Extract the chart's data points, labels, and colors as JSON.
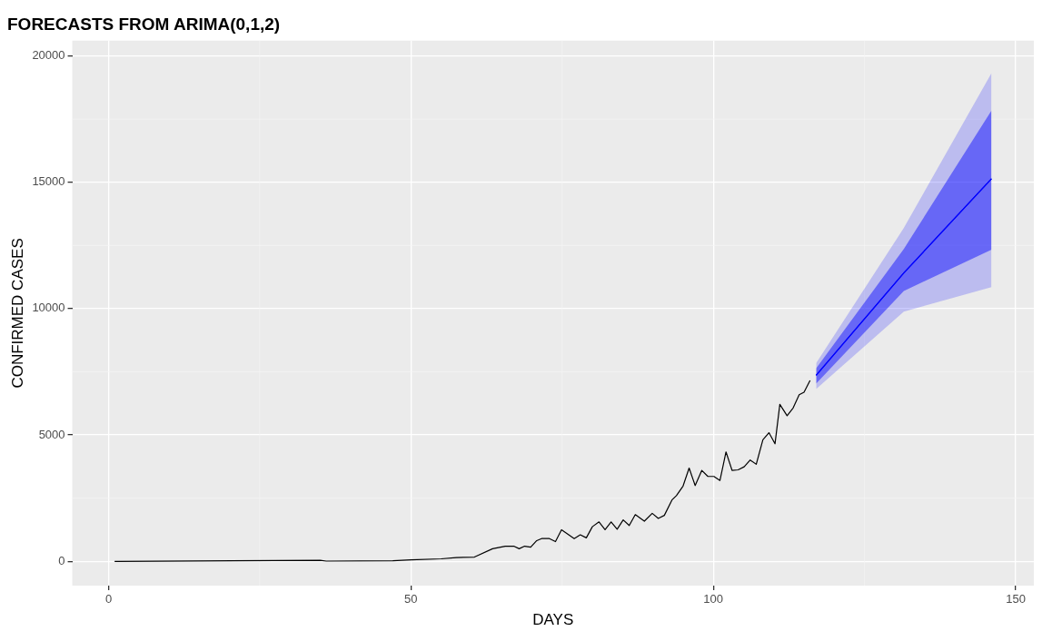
{
  "chart_data": {
    "type": "line",
    "title": "FORECASTS FROM ARIMA(0,1,2)",
    "xlabel": "DAYS",
    "ylabel": "CONFIRMED CASES",
    "xlim": [
      -6,
      153
    ],
    "ylim": [
      -960,
      20600
    ],
    "xticks": [
      0,
      50,
      100,
      150
    ],
    "yticks": [
      0,
      5000,
      10000,
      15000,
      20000
    ],
    "grid": true,
    "legend": false,
    "series": [
      {
        "color": "#000000",
        "x": [
          1,
          35,
          36,
          47,
          50,
          55,
          57.5,
          60.5,
          63.5,
          65.6,
          67,
          67.9,
          68.8,
          69.8,
          70.8,
          71.6,
          72.9,
          73.9,
          74.9,
          77,
          78,
          79,
          80,
          81.1,
          82.1,
          83.1,
          84.1,
          85.1,
          86.1,
          87.1,
          88.6,
          89.9,
          90.9,
          91.9,
          93.2,
          93.9,
          95,
          96,
          97,
          98.1,
          99.1,
          100.1,
          101.1,
          102.1,
          103.1,
          104.1,
          105.1,
          106.1,
          107.1,
          108.2,
          109.2,
          110.2,
          111,
          112.2,
          113.2,
          114.2,
          115,
          116
        ],
        "values": [
          0,
          40,
          10,
          20,
          60,
          100,
          150,
          170,
          500,
          600,
          600,
          500,
          600,
          560,
          820,
          900,
          900,
          780,
          1250,
          900,
          1050,
          930,
          1370,
          1560,
          1250,
          1560,
          1270,
          1640,
          1420,
          1850,
          1590,
          1900,
          1700,
          1820,
          2440,
          2600,
          2980,
          3690,
          3000,
          3600,
          3360,
          3360,
          3200,
          4330,
          3600,
          3620,
          3740,
          4010,
          3840,
          4810,
          5090,
          4650,
          6210,
          5760,
          6070,
          6590,
          6690,
          7160
        ]
      },
      {
        "color": "#0000ff",
        "x": [
          117,
          131.5,
          146
        ],
        "values": [
          7360,
          11410,
          15140
        ],
        "lower": [
          7030,
          10700,
          12330
        ],
        "upper": [
          7630,
          12360,
          17840
        ]
      },
      {
        "color": "#0000ff",
        "x": [
          117,
          131.5,
          146
        ],
        "values": [
          7360,
          11410,
          15140
        ],
        "lower": [
          6820,
          9880,
          10850
        ],
        "upper": [
          7840,
          13190,
          19320
        ]
      }
    ]
  }
}
